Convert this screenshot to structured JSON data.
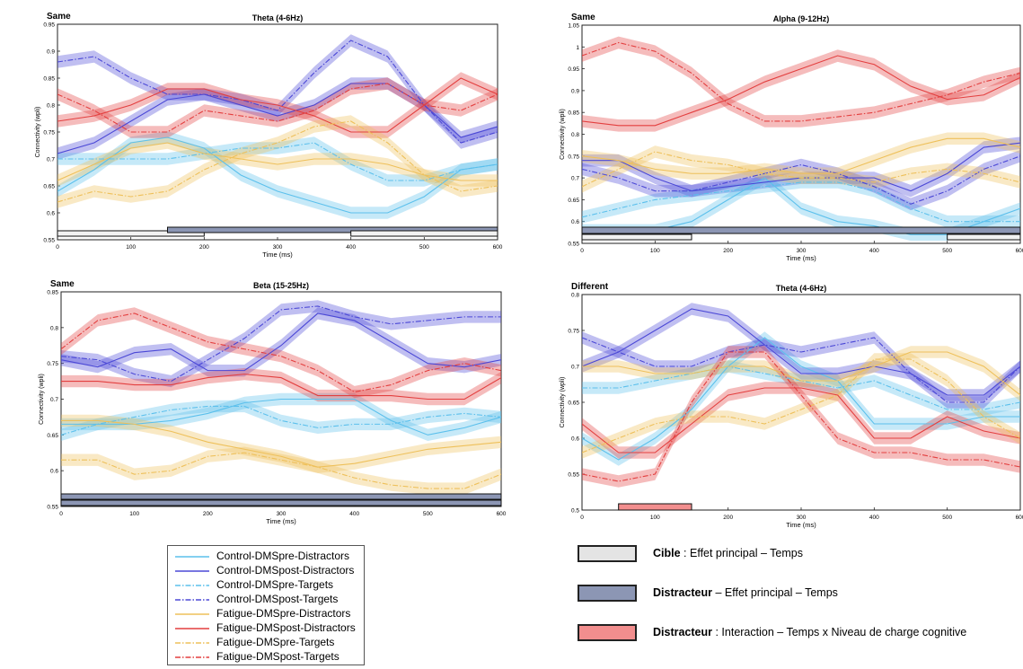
{
  "chart_data": [
    {
      "type": "line",
      "condition": "Same",
      "title": "Theta (4-6Hz)",
      "xlabel": "Time (ms)",
      "ylabel": "Connectivity (wpli)",
      "xlim": [
        0,
        600
      ],
      "ylim": [
        0.55,
        0.95
      ],
      "xticks": [
        0,
        100,
        200,
        300,
        400,
        500,
        600
      ],
      "yticks": [
        0.55,
        0.6,
        0.65,
        0.7,
        0.75,
        0.8,
        0.85,
        0.9,
        0.95
      ],
      "x": [
        0,
        50,
        100,
        150,
        200,
        250,
        300,
        350,
        400,
        450,
        500,
        550,
        600
      ],
      "series": [
        {
          "name": "Control-DMSpre-Distractors",
          "values": [
            0.64,
            0.68,
            0.73,
            0.74,
            0.72,
            0.67,
            0.64,
            0.62,
            0.6,
            0.6,
            0.63,
            0.68,
            0.69
          ]
        },
        {
          "name": "Control-DMSpost-Distractors",
          "values": [
            0.71,
            0.73,
            0.77,
            0.81,
            0.82,
            0.8,
            0.78,
            0.8,
            0.84,
            0.84,
            0.8,
            0.74,
            0.76
          ]
        },
        {
          "name": "Control-DMSpre-Targets",
          "values": [
            0.7,
            0.7,
            0.7,
            0.7,
            0.71,
            0.72,
            0.72,
            0.73,
            0.69,
            0.66,
            0.66,
            0.68,
            0.69
          ]
        },
        {
          "name": "Control-DMSpost-Targets",
          "values": [
            0.88,
            0.89,
            0.85,
            0.82,
            0.82,
            0.81,
            0.79,
            0.86,
            0.92,
            0.89,
            0.8,
            0.73,
            0.75
          ]
        },
        {
          "name": "Fatigue-DMSpre-Distractors",
          "values": [
            0.66,
            0.69,
            0.72,
            0.73,
            0.71,
            0.7,
            0.69,
            0.7,
            0.7,
            0.69,
            0.67,
            0.66,
            0.66
          ]
        },
        {
          "name": "Fatigue-DMSpost-Distractors",
          "values": [
            0.77,
            0.78,
            0.8,
            0.83,
            0.83,
            0.81,
            0.8,
            0.78,
            0.75,
            0.75,
            0.8,
            0.85,
            0.82
          ]
        },
        {
          "name": "Fatigue-DMSpre-Targets",
          "values": [
            0.62,
            0.64,
            0.63,
            0.64,
            0.68,
            0.71,
            0.73,
            0.76,
            0.77,
            0.73,
            0.67,
            0.64,
            0.65
          ]
        },
        {
          "name": "Fatigue-DMSpost-Targets",
          "values": [
            0.82,
            0.79,
            0.75,
            0.75,
            0.79,
            0.78,
            0.77,
            0.79,
            0.83,
            0.84,
            0.8,
            0.79,
            0.82
          ]
        }
      ],
      "bars": [
        {
          "kind": "target",
          "from": 0,
          "to": 200
        },
        {
          "kind": "distractor",
          "from": 150,
          "to": 600
        },
        {
          "kind": "target",
          "from": 400,
          "to": 600
        }
      ]
    },
    {
      "type": "line",
      "condition": "Same",
      "title": "Alpha (9-12Hz)",
      "xlabel": "Time (ms)",
      "ylabel": "Connectivity (wpli)",
      "xlim": [
        0,
        600
      ],
      "ylim": [
        0.55,
        1.05
      ],
      "xticks": [
        0,
        100,
        200,
        300,
        400,
        500,
        600
      ],
      "yticks": [
        0.55,
        0.6,
        0.65,
        0.7,
        0.75,
        0.8,
        0.85,
        0.9,
        0.95,
        1,
        1.05
      ],
      "x": [
        0,
        50,
        100,
        150,
        200,
        250,
        300,
        350,
        400,
        450,
        500,
        550,
        600
      ],
      "series": [
        {
          "name": "Control-DMSpre-Distractors",
          "values": [
            0.58,
            0.58,
            0.58,
            0.6,
            0.65,
            0.7,
            0.63,
            0.6,
            0.59,
            0.57,
            0.57,
            0.6,
            0.63
          ]
        },
        {
          "name": "Control-DMSpost-Distractors",
          "values": [
            0.74,
            0.74,
            0.7,
            0.67,
            0.68,
            0.69,
            0.7,
            0.7,
            0.7,
            0.67,
            0.71,
            0.77,
            0.78
          ]
        },
        {
          "name": "Control-DMSpre-Targets",
          "values": [
            0.61,
            0.63,
            0.65,
            0.66,
            0.67,
            0.68,
            0.69,
            0.69,
            0.67,
            0.63,
            0.6,
            0.6,
            0.6
          ]
        },
        {
          "name": "Control-DMSpost-Targets",
          "values": [
            0.72,
            0.7,
            0.67,
            0.67,
            0.69,
            0.71,
            0.73,
            0.71,
            0.68,
            0.64,
            0.67,
            0.72,
            0.75
          ]
        },
        {
          "name": "Fatigue-DMSpre-Distractors",
          "values": [
            0.75,
            0.74,
            0.72,
            0.71,
            0.71,
            0.72,
            0.71,
            0.71,
            0.74,
            0.77,
            0.79,
            0.79,
            0.77
          ]
        },
        {
          "name": "Fatigue-DMSpost-Distractors",
          "values": [
            0.83,
            0.82,
            0.82,
            0.85,
            0.88,
            0.92,
            0.95,
            0.98,
            0.96,
            0.91,
            0.88,
            0.89,
            0.93
          ]
        },
        {
          "name": "Fatigue-DMSpre-Targets",
          "values": [
            0.68,
            0.72,
            0.76,
            0.74,
            0.73,
            0.71,
            0.7,
            0.7,
            0.69,
            0.71,
            0.72,
            0.71,
            0.69
          ]
        },
        {
          "name": "Fatigue-DMSpost-Targets",
          "values": [
            0.98,
            1.01,
            0.99,
            0.94,
            0.87,
            0.83,
            0.83,
            0.84,
            0.85,
            0.87,
            0.89,
            0.92,
            0.94
          ]
        }
      ],
      "bars": [
        {
          "kind": "distractor",
          "from": 0,
          "to": 600
        },
        {
          "kind": "target",
          "from": 0,
          "to": 150
        },
        {
          "kind": "target",
          "from": 500,
          "to": 600
        }
      ]
    },
    {
      "type": "line",
      "condition": "Same",
      "title": "Beta (15-25Hz)",
      "xlabel": "Time (ms)",
      "ylabel": "Connectivity (wpli)",
      "xlim": [
        0,
        600
      ],
      "ylim": [
        0.55,
        0.85
      ],
      "xticks": [
        0,
        100,
        200,
        300,
        400,
        500,
        600
      ],
      "yticks": [
        0.55,
        0.6,
        0.65,
        0.7,
        0.75,
        0.8,
        0.85
      ],
      "x": [
        0,
        50,
        100,
        150,
        200,
        250,
        300,
        350,
        400,
        450,
        500,
        550,
        600
      ],
      "series": [
        {
          "name": "Control-DMSpre-Distractors",
          "values": [
            0.665,
            0.665,
            0.665,
            0.67,
            0.68,
            0.695,
            0.7,
            0.7,
            0.7,
            0.67,
            0.65,
            0.66,
            0.675
          ]
        },
        {
          "name": "Control-DMSpost-Distractors",
          "values": [
            0.755,
            0.745,
            0.765,
            0.77,
            0.74,
            0.74,
            0.775,
            0.82,
            0.81,
            0.78,
            0.75,
            0.745,
            0.755
          ]
        },
        {
          "name": "Control-DMSpre-Targets",
          "values": [
            0.65,
            0.665,
            0.675,
            0.685,
            0.69,
            0.69,
            0.67,
            0.66,
            0.665,
            0.665,
            0.675,
            0.68,
            0.675
          ]
        },
        {
          "name": "Control-DMSpost-Targets",
          "values": [
            0.76,
            0.755,
            0.735,
            0.725,
            0.755,
            0.785,
            0.825,
            0.83,
            0.815,
            0.805,
            0.81,
            0.815,
            0.815
          ]
        },
        {
          "name": "Fatigue-DMSpre-Distractors",
          "values": [
            0.67,
            0.67,
            0.665,
            0.655,
            0.64,
            0.63,
            0.62,
            0.605,
            0.61,
            0.62,
            0.63,
            0.635,
            0.64
          ]
        },
        {
          "name": "Fatigue-DMSpost-Distractors",
          "values": [
            0.725,
            0.725,
            0.72,
            0.72,
            0.73,
            0.735,
            0.73,
            0.705,
            0.705,
            0.705,
            0.7,
            0.7,
            0.73
          ]
        },
        {
          "name": "Fatigue-DMSpre-Targets",
          "values": [
            0.615,
            0.615,
            0.595,
            0.6,
            0.62,
            0.625,
            0.615,
            0.605,
            0.59,
            0.58,
            0.575,
            0.575,
            0.595
          ]
        },
        {
          "name": "Fatigue-DMSpost-Targets",
          "values": [
            0.77,
            0.81,
            0.82,
            0.8,
            0.78,
            0.77,
            0.76,
            0.74,
            0.71,
            0.72,
            0.74,
            0.75,
            0.74
          ]
        }
      ],
      "bars": [
        {
          "kind": "distractor",
          "from": 0,
          "to": 600
        },
        {
          "kind": "distractor",
          "from": 0,
          "to": 600
        }
      ]
    },
    {
      "type": "line",
      "condition": "Different",
      "title": "Theta (4-6Hz)",
      "xlabel": "Time (ms)",
      "ylabel": "Connectivity (wpli)",
      "xlim": [
        0,
        600
      ],
      "ylim": [
        0.5,
        0.8
      ],
      "xticks": [
        0,
        100,
        200,
        300,
        400,
        500,
        600
      ],
      "yticks": [
        0.5,
        0.55,
        0.6,
        0.65,
        0.7,
        0.75,
        0.8
      ],
      "x": [
        0,
        50,
        100,
        150,
        200,
        250,
        300,
        350,
        400,
        450,
        500,
        550,
        600
      ],
      "series": [
        {
          "name": "Control-DMSpre-Distractors",
          "values": [
            0.6,
            0.57,
            0.6,
            0.64,
            0.7,
            0.74,
            0.7,
            0.68,
            0.62,
            0.62,
            0.62,
            0.63,
            0.63
          ]
        },
        {
          "name": "Control-DMSpost-Distractors",
          "values": [
            0.7,
            0.72,
            0.75,
            0.78,
            0.77,
            0.73,
            0.69,
            0.69,
            0.7,
            0.69,
            0.66,
            0.66,
            0.7
          ]
        },
        {
          "name": "Control-DMSpre-Targets",
          "values": [
            0.67,
            0.67,
            0.68,
            0.69,
            0.7,
            0.69,
            0.68,
            0.67,
            0.68,
            0.66,
            0.64,
            0.64,
            0.65
          ]
        },
        {
          "name": "Control-DMSpost-Targets",
          "values": [
            0.74,
            0.72,
            0.7,
            0.7,
            0.72,
            0.73,
            0.72,
            0.73,
            0.74,
            0.69,
            0.65,
            0.65,
            0.7
          ]
        },
        {
          "name": "Fatigue-DMSpre-Distractors",
          "values": [
            0.7,
            0.7,
            0.69,
            0.69,
            0.7,
            0.7,
            0.68,
            0.68,
            0.7,
            0.72,
            0.72,
            0.7,
            0.66
          ]
        },
        {
          "name": "Fatigue-DMSpost-Distractors",
          "values": [
            0.62,
            0.58,
            0.58,
            0.62,
            0.66,
            0.67,
            0.67,
            0.66,
            0.6,
            0.6,
            0.63,
            0.61,
            0.6
          ]
        },
        {
          "name": "Fatigue-DMSpre-Targets",
          "values": [
            0.58,
            0.6,
            0.62,
            0.63,
            0.63,
            0.62,
            0.64,
            0.66,
            0.71,
            0.71,
            0.68,
            0.63,
            0.6
          ]
        },
        {
          "name": "Fatigue-DMSpost-Targets",
          "values": [
            0.55,
            0.54,
            0.55,
            0.65,
            0.72,
            0.72,
            0.66,
            0.6,
            0.58,
            0.58,
            0.57,
            0.57,
            0.56
          ]
        }
      ],
      "bars": [
        {
          "kind": "interaction",
          "from": 50,
          "to": 150
        }
      ]
    }
  ],
  "colors": {
    "control_pre": "#5cc0ec",
    "control_post": "#4b48d6",
    "fatigue_pre": "#eec05a",
    "fatigue_post": "#e33f3f",
    "target_bar": "#f2f2f2",
    "distractor_bar": "#8c96b4",
    "interaction_bar": "#f28e8e"
  },
  "legend": [
    {
      "label": "Control-DMSpre-Distractors",
      "color": "#5cc0ec",
      "style": "solid"
    },
    {
      "label": "Control-DMSpost-Distractors",
      "color": "#4b48d6",
      "style": "solid"
    },
    {
      "label": "Control-DMSpre-Targets",
      "color": "#5cc0ec",
      "style": "dashdot"
    },
    {
      "label": "Control-DMSpost-Targets",
      "color": "#4b48d6",
      "style": "dashdot"
    },
    {
      "label": "Fatigue-DMSpre-Distractors",
      "color": "#eec05a",
      "style": "solid"
    },
    {
      "label": "Fatigue-DMSpost-Distractors",
      "color": "#e33f3f",
      "style": "solid"
    },
    {
      "label": "Fatigue-DMSpre-Targets",
      "color": "#eec05a",
      "style": "dashdot"
    },
    {
      "label": "Fatigue-DMSpost-Targets",
      "color": "#e33f3f",
      "style": "dashdot"
    }
  ],
  "key": [
    {
      "kind": "target",
      "bold": "Cible",
      "rest": " : Effet principal – Temps"
    },
    {
      "kind": "distractor",
      "bold": "Distracteur",
      "rest": " – Effet principal – Temps"
    },
    {
      "kind": "interaction",
      "bold": "Distracteur",
      "rest": " : Interaction – Temps x Niveau de charge cognitive"
    }
  ]
}
